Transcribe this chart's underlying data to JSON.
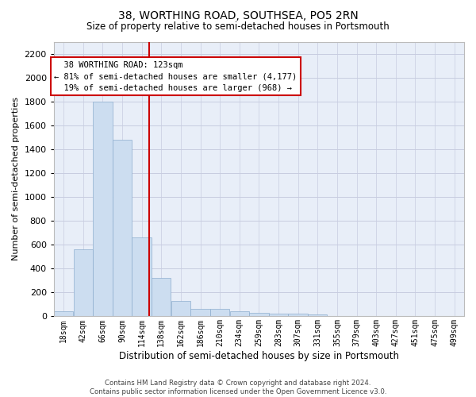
{
  "title": "38, WORTHING ROAD, SOUTHSEA, PO5 2RN",
  "subtitle": "Size of property relative to semi-detached houses in Portsmouth",
  "xlabel": "Distribution of semi-detached houses by size in Portsmouth",
  "ylabel": "Number of semi-detached properties",
  "bar_color": "#ccddf0",
  "bar_edge_color": "#88aaccaa",
  "background_color": "#e8eef8",
  "grid_color": "#c8cce0",
  "annotation_text": "  38 WORTHING ROAD: 123sqm\n← 81% of semi-detached houses are smaller (4,177)\n  19% of semi-detached houses are larger (968) →",
  "vline_x": 123,
  "vline_color": "#cc0000",
  "bin_width": 24,
  "bins": [
    6,
    30,
    54,
    78,
    102,
    126,
    150,
    174,
    198,
    222,
    246,
    270,
    294,
    318,
    342,
    366,
    390,
    414,
    438,
    462,
    486,
    510
  ],
  "bin_labels": [
    "18sqm",
    "42sqm",
    "66sqm",
    "90sqm",
    "114sqm",
    "138sqm",
    "162sqm",
    "186sqm",
    "210sqm",
    "234sqm",
    "259sqm",
    "283sqm",
    "307sqm",
    "331sqm",
    "355sqm",
    "379sqm",
    "403sqm",
    "427sqm",
    "451sqm",
    "475sqm",
    "499sqm"
  ],
  "counts": [
    40,
    560,
    1800,
    1480,
    660,
    325,
    130,
    65,
    60,
    40,
    30,
    25,
    20,
    15,
    0,
    0,
    0,
    0,
    0,
    0,
    0
  ],
  "ylim": [
    0,
    2300
  ],
  "yticks": [
    0,
    200,
    400,
    600,
    800,
    1000,
    1200,
    1400,
    1600,
    1800,
    2000,
    2200
  ],
  "footnote": "Contains HM Land Registry data © Crown copyright and database right 2024.\nContains public sector information licensed under the Open Government Licence v3.0."
}
